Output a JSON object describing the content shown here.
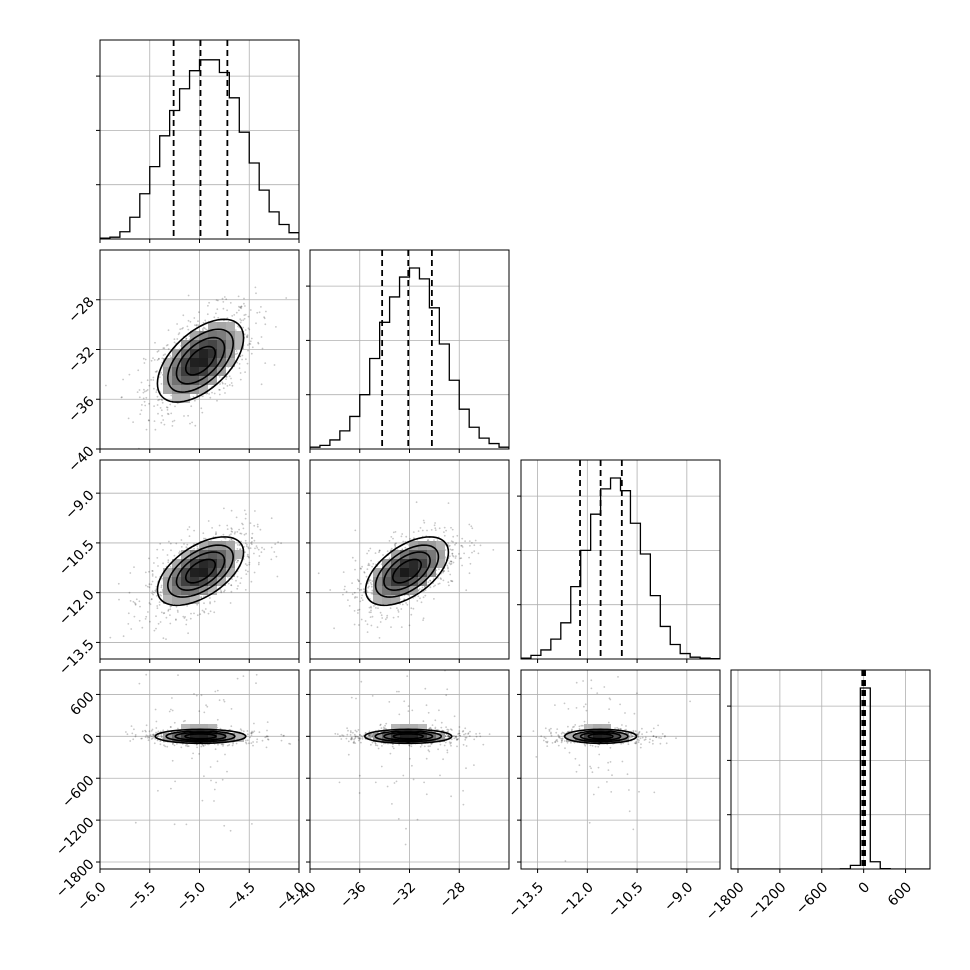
{
  "chart_data": {
    "type": "corner",
    "parameters": [
      {
        "range": [
          -6.0,
          -4.0
        ],
        "ticks": [
          -6.0,
          -5.5,
          -5.0,
          -4.5,
          -4.0
        ],
        "tick_labels": [
          "−6.0",
          "−5.5",
          "−5.0",
          "−4.5",
          "−4.0"
        ],
        "quantiles": [
          -5.26,
          -4.99,
          -4.72
        ],
        "mean": -4.99,
        "sd": 0.26
      },
      {
        "range": [
          -40,
          -24
        ],
        "ticks": [
          -40,
          -36,
          -32,
          -28
        ],
        "tick_labels": [
          "−40",
          "−36",
          "−32",
          "−28"
        ],
        "quantiles": [
          -34.2,
          -32.1,
          -30.2
        ],
        "mean": -32.1,
        "sd": 2.0
      },
      {
        "range": [
          -14.0,
          -8.0
        ],
        "ticks": [
          -13.5,
          -12.0,
          -10.5,
          -9.0
        ],
        "tick_labels": [
          "−13.5",
          "−12.0",
          "−10.5",
          "−9.0"
        ],
        "quantiles": [
          -12.22,
          -11.6,
          -10.96
        ],
        "mean": -11.6,
        "sd": 0.62
      },
      {
        "range": [
          -1900,
          950
        ],
        "ticks": [
          -1800,
          -1200,
          -600,
          0,
          600
        ],
        "tick_labels": [
          "−1800",
          "−1200",
          "−600",
          "0",
          "600"
        ],
        "quantiles": [
          -20,
          0,
          20
        ],
        "mean": 0,
        "sd": 40
      }
    ],
    "histograms": [
      {
        "param": 0,
        "bin_edges": [
          -6.0,
          -5.9,
          -5.8,
          -5.7,
          -5.6,
          -5.5,
          -5.4,
          -5.3,
          -5.2,
          -5.1,
          -5.0,
          -4.9,
          -4.8,
          -4.7,
          -4.6,
          -4.5,
          -4.4,
          -4.3,
          -4.2,
          -4.1,
          -4.0
        ],
        "counts": [
          0.005,
          0.01,
          0.04,
          0.12,
          0.25,
          0.4,
          0.57,
          0.71,
          0.83,
          0.93,
          0.99,
          0.99,
          0.92,
          0.78,
          0.59,
          0.42,
          0.27,
          0.15,
          0.08,
          0.035
        ]
      },
      {
        "param": 1,
        "bin_edges": [
          -40,
          -39.2,
          -38.4,
          -37.6,
          -36.8,
          -36,
          -35.2,
          -34.4,
          -33.6,
          -32.8,
          -32,
          -31.2,
          -30.4,
          -29.6,
          -28.8,
          -28,
          -27.2,
          -26.4,
          -25.6,
          -24.8,
          -24
        ],
        "counts": [
          0.01,
          0.02,
          0.05,
          0.1,
          0.18,
          0.3,
          0.5,
          0.7,
          0.84,
          0.95,
          1.0,
          0.94,
          0.78,
          0.58,
          0.38,
          0.22,
          0.12,
          0.06,
          0.03,
          0.01
        ]
      },
      {
        "param": 2,
        "bin_edges": [
          -14.0,
          -13.7,
          -13.4,
          -13.1,
          -12.8,
          -12.5,
          -12.2,
          -11.9,
          -11.6,
          -11.3,
          -11.0,
          -10.7,
          -10.4,
          -10.1,
          -9.8,
          -9.5,
          -9.2,
          -8.9,
          -8.6,
          -8.3,
          -8.0
        ],
        "counts": [
          0.005,
          0.02,
          0.05,
          0.11,
          0.2,
          0.4,
          0.6,
          0.8,
          0.94,
          1.0,
          0.93,
          0.75,
          0.58,
          0.35,
          0.18,
          0.08,
          0.03,
          0.01,
          0.005,
          0.002
        ]
      },
      {
        "param": 3,
        "bin_edges": [
          -1900,
          -1757.5,
          -1615,
          -1472.5,
          -1330,
          -1187.5,
          -1045,
          -902.5,
          -760,
          -617.5,
          -475,
          -332.5,
          -190,
          -47.5,
          95,
          237.5,
          380,
          522.5,
          665,
          807.5,
          950
        ],
        "counts": [
          0,
          0,
          0,
          0,
          0,
          0,
          0,
          0,
          0,
          0,
          0,
          0.001,
          0.02,
          1.0,
          0.04,
          0.002,
          0,
          0,
          0,
          0
        ]
      }
    ],
    "pairs": [
      {
        "x": 0,
        "y": 1,
        "center": [
          -4.99,
          -32.9
        ],
        "correlation": 0.55
      },
      {
        "x": 0,
        "y": 2,
        "center": [
          -4.99,
          -11.35
        ],
        "correlation": 0.55
      },
      {
        "x": 1,
        "y": 2,
        "center": [
          -32.2,
          -11.35
        ],
        "correlation": 0.55
      },
      {
        "x": 0,
        "y": 3,
        "center": [
          -4.99,
          0
        ],
        "correlation": 0.0
      },
      {
        "x": 1,
        "y": 3,
        "center": [
          -32.1,
          0
        ],
        "correlation": 0.0
      },
      {
        "x": 2,
        "y": 3,
        "center": [
          -11.6,
          0
        ],
        "correlation": 0.0
      }
    ],
    "grid": true
  }
}
